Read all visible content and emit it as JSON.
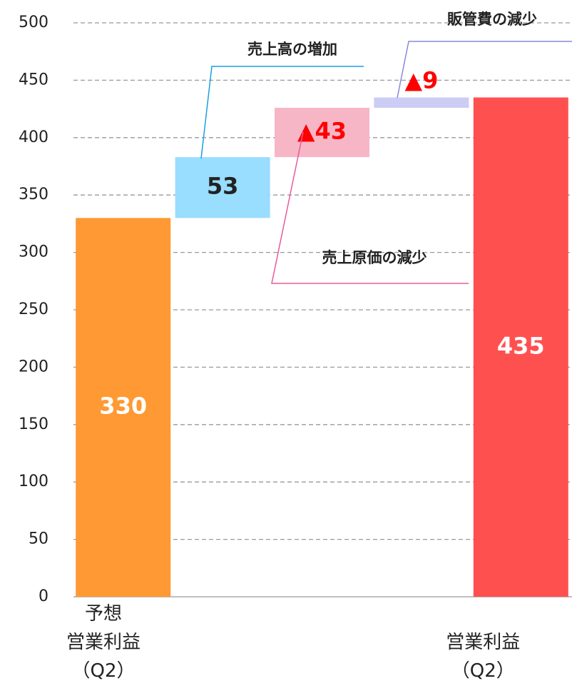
{
  "chart_data": {
    "type": "waterfall",
    "categories": [
      "予想\n営業利益\n（Q2）",
      null,
      null,
      null,
      "営業利益\n（Q2）"
    ],
    "values": [
      330,
      53,
      43,
      9,
      435
    ],
    "value_labels": [
      "330",
      "53",
      "▲43",
      "▲9",
      "435"
    ],
    "colors": [
      "#ff9933",
      "#99ddff",
      "#f7b6c6",
      "#ccccf5",
      "#ff5050"
    ],
    "label_colors": [
      "#ffffff",
      "#222222",
      "#ff0000",
      "#ff0000",
      "#ffffff"
    ],
    "kinds": [
      "total",
      "step",
      "step",
      "step",
      "total"
    ],
    "annotations": [
      "売上高の増加",
      "売上原価の減少",
      "販管費の減少"
    ],
    "ylim": [
      0,
      500
    ],
    "yticks": [
      0,
      50,
      100,
      150,
      200,
      250,
      300,
      350,
      400,
      450,
      500
    ],
    "grid": true
  }
}
